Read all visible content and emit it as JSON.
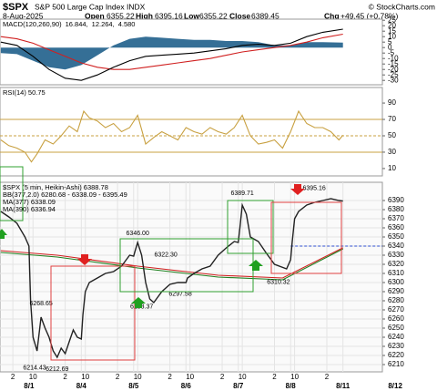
{
  "header": {
    "symbol": "$SPX",
    "name": "S&P 500 Large Cap Index INDX",
    "date": "8-Aug-2025",
    "open_label": "Open",
    "open": 6355.22,
    "high_label": "High",
    "high": 6395.16,
    "low_label": "Low",
    "low": 6355.22,
    "close_label": "Close",
    "close": 6389.45,
    "chg_label": "Chg",
    "chg": "+49.45 (+0.78%)",
    "credit": "© StockCharts.com"
  },
  "chart_data": [
    {
      "type": "line",
      "xlim": [
        2.9,
        50.4
      ],
      "ylim": [
        -34,
        26
      ],
      "yticks": [
        25,
        20,
        15,
        10,
        5,
        0,
        -5,
        -10,
        -15,
        -20,
        -25,
        -30
      ],
      "legend": [
        {
          "text": "MACD(120,260,90)",
          "color": "#000000"
        },
        {
          "text": "16.844,",
          "color": "#000000"
        },
        {
          "text": "12.264,",
          "color": "#d02020"
        },
        {
          "text": "4.580",
          "color": "#1f5f8b"
        }
      ],
      "x": [
        3,
        5,
        7,
        9,
        11,
        13,
        15,
        17,
        19,
        21,
        23,
        25,
        27,
        29,
        31,
        33,
        35,
        37,
        39,
        41,
        43,
        45.5
      ],
      "series": [
        {
          "name": "Histogram",
          "kind": "area",
          "color": "#1f5f8b",
          "values": [
            -5,
            -6,
            -12,
            -18,
            -20,
            -16,
            -7,
            2,
            8,
            10,
            9,
            8,
            7,
            7,
            6,
            6,
            5,
            2,
            2,
            5,
            5,
            4.58
          ]
        },
        {
          "name": "Signal",
          "kind": "line",
          "color": "#d02020",
          "values": [
            10,
            8,
            4,
            -2,
            -8,
            -14,
            -18,
            -20,
            -20,
            -18,
            -16,
            -14,
            -12,
            -10,
            -7,
            -4,
            -2,
            0,
            2,
            5,
            9,
            12.264
          ]
        },
        {
          "name": "MACD",
          "kind": "line",
          "color": "#000000",
          "values": [
            5,
            2,
            -8,
            -20,
            -28,
            -30,
            -25,
            -18,
            -12,
            -8,
            -7,
            -6,
            -5,
            -3,
            -1,
            2,
            3,
            2,
            4,
            10,
            14,
            16.844
          ]
        }
      ]
    },
    {
      "type": "line",
      "xlim": [
        2.9,
        50.4
      ],
      "ylim": [
        1,
        109
      ],
      "yticks": [
        90,
        70,
        50,
        30,
        10
      ],
      "legend": [
        {
          "text": "RSI(14) 50.75",
          "color": "#000000"
        }
      ],
      "hlines": [
        {
          "value": 70,
          "color": "#c8a040",
          "dash": false
        },
        {
          "value": 50,
          "color": "#c8a040",
          "dash": true
        },
        {
          "value": 30,
          "color": "#c8a040",
          "dash": false
        }
      ],
      "x": [
        3,
        4,
        5,
        6,
        6.8,
        7.5,
        8.5,
        9.5,
        10.5,
        11.5,
        12.5,
        13.3,
        14,
        15,
        16,
        17,
        18,
        19,
        20,
        21,
        22,
        23,
        24,
        25,
        26,
        27,
        28,
        29,
        30,
        31,
        32,
        33,
        34,
        35,
        36,
        37,
        38,
        39,
        40,
        41,
        42,
        43,
        44,
        45,
        45.5
      ],
      "series": [
        {
          "name": "RSI",
          "kind": "line",
          "color": "#c8a040",
          "values": [
            45,
            38,
            35,
            30,
            18,
            28,
            45,
            40,
            50,
            62,
            55,
            80,
            72,
            68,
            60,
            65,
            55,
            60,
            75,
            40,
            48,
            55,
            50,
            45,
            60,
            55,
            52,
            60,
            55,
            52,
            60,
            75,
            50,
            40,
            42,
            45,
            35,
            55,
            80,
            65,
            60,
            60,
            55,
            45,
            50.75
          ]
        }
      ]
    },
    {
      "type": "line",
      "xlim": [
        2.9,
        50.4
      ],
      "ylim": [
        6202,
        6410
      ],
      "yticks": [
        6390,
        6380,
        6370,
        6360,
        6350,
        6340,
        6330,
        6320,
        6310,
        6300,
        6290,
        6280,
        6270,
        6260,
        6250,
        6240,
        6230,
        6220,
        6210
      ],
      "xticks": [
        {
          "value": 4.5,
          "label": "2"
        },
        {
          "value": 6.5,
          "label": "8/1"
        },
        {
          "value": 7,
          "label": "10"
        },
        {
          "value": 11,
          "label": "2"
        },
        {
          "value": 13,
          "label": "8/4"
        },
        {
          "value": 13.5,
          "label": "10"
        },
        {
          "value": 17.5,
          "label": "2"
        },
        {
          "value": 19.5,
          "label": "8/5"
        },
        {
          "value": 20,
          "label": "10"
        },
        {
          "value": 24,
          "label": "2"
        },
        {
          "value": 26,
          "label": "8/6"
        },
        {
          "value": 26.5,
          "label": "10"
        },
        {
          "value": 30.5,
          "label": "2"
        },
        {
          "value": 32.5,
          "label": "8/7"
        },
        {
          "value": 33,
          "label": "10"
        },
        {
          "value": 37,
          "label": "2"
        },
        {
          "value": 39,
          "label": "8/8"
        },
        {
          "value": 39.5,
          "label": "10"
        },
        {
          "value": 43.5,
          "label": "2"
        },
        {
          "value": 45.5,
          "label": "8/11"
        },
        {
          "value": 52,
          "label": "8/12"
        }
      ],
      "grid": true,
      "legend": [
        {
          "text": "$SPX (5 min, Heikin-Ashi) 6388.78",
          "color": "#000000"
        },
        {
          "text": "BB(377,2.0) 6280.68 - 6338.09 - 6395.49",
          "color": "#777777"
        },
        {
          "text": "MA(377) 6338.09",
          "color": "#d02020"
        },
        {
          "text": "MA(390) 6336.94",
          "color": "#208020"
        }
      ],
      "hlines": [
        {
          "value": 6340,
          "color": "#3050d0",
          "dash": true,
          "from": 39
        }
      ],
      "x": [
        3,
        4,
        5,
        6,
        6.5,
        6.7,
        7,
        7.5,
        8,
        8.5,
        9,
        9.5,
        10,
        10.5,
        11,
        11.5,
        12,
        12.5,
        13,
        13.2,
        13.5,
        14,
        15,
        16,
        17,
        18,
        19,
        19.5,
        19.7,
        20,
        20.5,
        21,
        21.5,
        22,
        23,
        24,
        25,
        26,
        26.2,
        27,
        28,
        29,
        30,
        31,
        32,
        32.5,
        32.7,
        33,
        33.5,
        34,
        35,
        36,
        37,
        38.5,
        39,
        39.2,
        39.5,
        40,
        41,
        42,
        43,
        44,
        45,
        45.5
      ],
      "series": [
        {
          "name": "MA(377)",
          "kind": "line",
          "color": "#d02020",
          "x": [
            3,
            10,
            20,
            30,
            38,
            45.5
          ],
          "values": [
            6335,
            6330,
            6318,
            6308,
            6305,
            6338.09
          ]
        },
        {
          "name": "MA(390)",
          "kind": "line",
          "color": "#208020",
          "x": [
            3,
            10,
            20,
            30,
            38,
            45.5
          ],
          "values": [
            6333,
            6328,
            6316,
            6306,
            6303,
            6336.94
          ]
        },
        {
          "name": "$SPX",
          "kind": "line",
          "color": "#222222",
          "values": [
            6378,
            6372,
            6365,
            6350,
            6340,
            6280,
            6240,
            6225,
            6262,
            6250,
            6240,
            6225,
            6218,
            6228,
            6222,
            6235,
            6248,
            6240,
            6238,
            6265,
            6290,
            6300,
            6305,
            6310,
            6312,
            6318,
            6330,
            6329,
            6335,
            6344,
            6330,
            6300,
            6282,
            6278,
            6290,
            6298,
            6300,
            6300,
            6305,
            6310,
            6315,
            6318,
            6330,
            6338,
            6345,
            6344,
            6360,
            6385,
            6375,
            6350,
            6345,
            6332,
            6320,
            6315,
            6325,
            6345,
            6370,
            6378,
            6385,
            6388,
            6390,
            6392,
            6390,
            6389.45
          ]
        }
      ],
      "annotations": [
        {
          "x": 7.2,
          "y": 6214.43,
          "label": "6214.43"
        },
        {
          "x": 8.0,
          "y": 6268.65,
          "label": "6268.65"
        },
        {
          "x": 10.0,
          "y": 6212.69,
          "label": "6212.69"
        },
        {
          "x": 20.0,
          "y": 6346.0,
          "label": "6346.00"
        },
        {
          "x": 20.5,
          "y": 6283.37,
          "label": "6283.37"
        },
        {
          "x": 24.4,
          "y": 6322.3,
          "label": "6322.30"
        },
        {
          "x": 25.3,
          "y": 6297.58,
          "label": "6297.58"
        },
        {
          "x": 33.0,
          "y": 6389.71,
          "label": "6389.71"
        },
        {
          "x": 37.5,
          "y": 6310.32,
          "label": "6310.32"
        },
        {
          "x": 42.5,
          "y": 6395.16,
          "label": "6395.16"
        }
      ]
    }
  ]
}
